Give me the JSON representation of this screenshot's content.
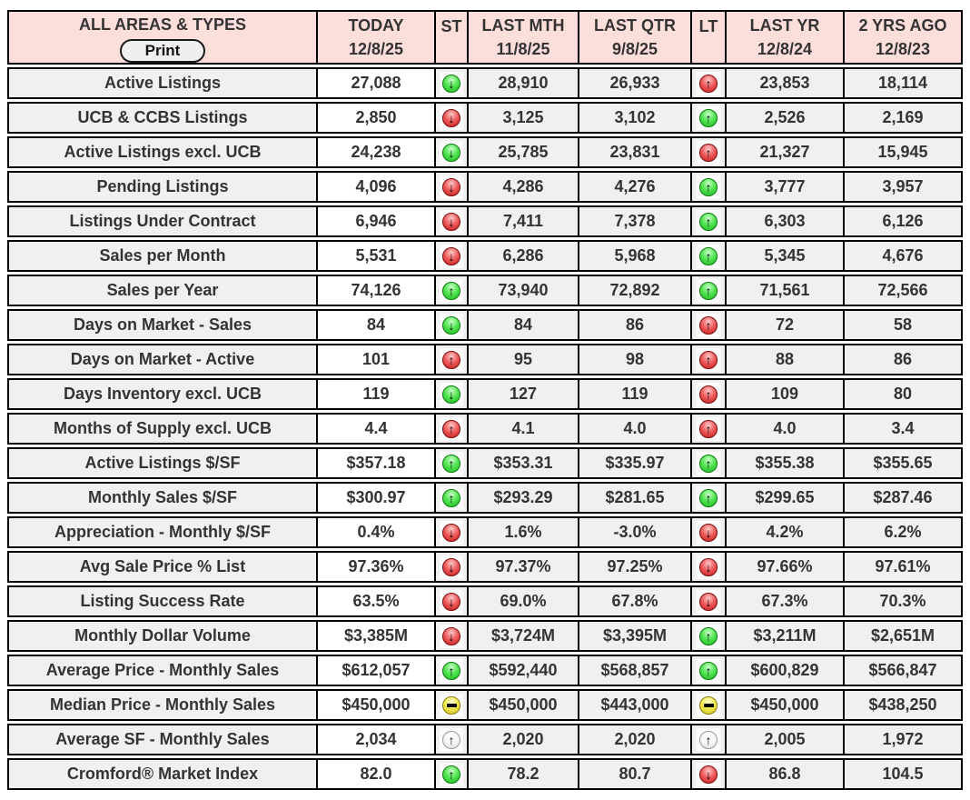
{
  "header": {
    "area_title": "ALL AREAS & TYPES",
    "print_label": "Print",
    "columns": [
      {
        "label": "TODAY",
        "date": "12/8/25"
      },
      {
        "label": "ST",
        "date": ""
      },
      {
        "label": "LAST MTH",
        "date": "11/8/25"
      },
      {
        "label": "LAST QTR",
        "date": "9/8/25"
      },
      {
        "label": "LT",
        "date": ""
      },
      {
        "label": "LAST YR",
        "date": "12/8/24"
      },
      {
        "label": "2 YRS AGO",
        "date": "12/8/23"
      }
    ]
  },
  "icons": {
    "up_glyph": "↑",
    "down_glyph": "↓"
  },
  "colors": {
    "header_bg": "#fcdedb",
    "row_bg": "#f0f0f0",
    "today_bg": "#ffffff",
    "border": "#000000",
    "text": "#333333",
    "status_green": "#2fd42f",
    "status_red": "#d93030",
    "status_yellow": "#ecdf3d",
    "status_neutral": "#f2f2f2"
  },
  "rows": [
    {
      "label": "Active Listings",
      "today": "27,088",
      "st": "green-down",
      "last_mth": "28,910",
      "last_qtr": "26,933",
      "lt": "red-up",
      "last_yr": "23,853",
      "two_yrs_ago": "18,114"
    },
    {
      "label": "UCB & CCBS Listings",
      "today": "2,850",
      "st": "red-down",
      "last_mth": "3,125",
      "last_qtr": "3,102",
      "lt": "green-up",
      "last_yr": "2,526",
      "two_yrs_ago": "2,169"
    },
    {
      "label": "Active Listings excl. UCB",
      "today": "24,238",
      "st": "green-down",
      "last_mth": "25,785",
      "last_qtr": "23,831",
      "lt": "red-up",
      "last_yr": "21,327",
      "two_yrs_ago": "15,945"
    },
    {
      "label": "Pending Listings",
      "today": "4,096",
      "st": "red-down",
      "last_mth": "4,286",
      "last_qtr": "4,276",
      "lt": "green-up",
      "last_yr": "3,777",
      "two_yrs_ago": "3,957"
    },
    {
      "label": "Listings Under Contract",
      "today": "6,946",
      "st": "red-down",
      "last_mth": "7,411",
      "last_qtr": "7,378",
      "lt": "green-up",
      "last_yr": "6,303",
      "two_yrs_ago": "6,126"
    },
    {
      "label": "Sales per Month",
      "today": "5,531",
      "st": "red-down",
      "last_mth": "6,286",
      "last_qtr": "5,968",
      "lt": "green-up",
      "last_yr": "5,345",
      "two_yrs_ago": "4,676"
    },
    {
      "label": "Sales per Year",
      "today": "74,126",
      "st": "green-up",
      "last_mth": "73,940",
      "last_qtr": "72,892",
      "lt": "green-up",
      "last_yr": "71,561",
      "two_yrs_ago": "72,566"
    },
    {
      "label": "Days on Market - Sales",
      "today": "84",
      "st": "green-down",
      "last_mth": "84",
      "last_qtr": "86",
      "lt": "red-up",
      "last_yr": "72",
      "two_yrs_ago": "58"
    },
    {
      "label": "Days on Market - Active",
      "today": "101",
      "st": "red-up",
      "last_mth": "95",
      "last_qtr": "98",
      "lt": "red-up",
      "last_yr": "88",
      "two_yrs_ago": "86"
    },
    {
      "label": "Days Inventory excl. UCB",
      "today": "119",
      "st": "green-down",
      "last_mth": "127",
      "last_qtr": "119",
      "lt": "red-up",
      "last_yr": "109",
      "two_yrs_ago": "80"
    },
    {
      "label": "Months of Supply excl. UCB",
      "today": "4.4",
      "st": "red-up",
      "last_mth": "4.1",
      "last_qtr": "4.0",
      "lt": "red-up",
      "last_yr": "4.0",
      "two_yrs_ago": "3.4"
    },
    {
      "label": "Active Listings $/SF",
      "today": "$357.18",
      "st": "green-up",
      "last_mth": "$353.31",
      "last_qtr": "$335.97",
      "lt": "green-up",
      "last_yr": "$355.38",
      "two_yrs_ago": "$355.65"
    },
    {
      "label": "Monthly Sales $/SF",
      "today": "$300.97",
      "st": "green-up",
      "last_mth": "$293.29",
      "last_qtr": "$281.65",
      "lt": "green-up",
      "last_yr": "$299.65",
      "two_yrs_ago": "$287.46"
    },
    {
      "label": "Appreciation - Monthly $/SF",
      "today": "0.4%",
      "st": "red-down",
      "last_mth": "1.6%",
      "last_qtr": "-3.0%",
      "lt": "red-down",
      "last_yr": "4.2%",
      "two_yrs_ago": "6.2%"
    },
    {
      "label": "Avg Sale Price % List",
      "today": "97.36%",
      "st": "red-down",
      "last_mth": "97.37%",
      "last_qtr": "97.25%",
      "lt": "red-down",
      "last_yr": "97.66%",
      "two_yrs_ago": "97.61%"
    },
    {
      "label": "Listing Success Rate",
      "today": "63.5%",
      "st": "red-down",
      "last_mth": "69.0%",
      "last_qtr": "67.8%",
      "lt": "red-down",
      "last_yr": "67.3%",
      "two_yrs_ago": "70.3%"
    },
    {
      "label": "Monthly Dollar Volume",
      "today": "$3,385M",
      "st": "red-down",
      "last_mth": "$3,724M",
      "last_qtr": "$3,395M",
      "lt": "green-up",
      "last_yr": "$3,211M",
      "two_yrs_ago": "$2,651M"
    },
    {
      "label": "Average Price - Monthly Sales",
      "today": "$612,057",
      "st": "green-up",
      "last_mth": "$592,440",
      "last_qtr": "$568,857",
      "lt": "green-up",
      "last_yr": "$600,829",
      "two_yrs_ago": "$566,847"
    },
    {
      "label": "Median Price - Monthly Sales",
      "today": "$450,000",
      "st": "yellow-flat",
      "last_mth": "$450,000",
      "last_qtr": "$443,000",
      "lt": "yellow-flat",
      "last_yr": "$450,000",
      "two_yrs_ago": "$438,250"
    },
    {
      "label": "Average SF - Monthly Sales",
      "today": "2,034",
      "st": "neutral-up",
      "last_mth": "2,020",
      "last_qtr": "2,020",
      "lt": "neutral-up",
      "last_yr": "2,005",
      "two_yrs_ago": "1,972"
    },
    {
      "label": "Cromford® Market Index",
      "today": "82.0",
      "st": "green-up",
      "last_mth": "78.2",
      "last_qtr": "80.7",
      "lt": "red-down",
      "last_yr": "86.8",
      "two_yrs_ago": "104.5"
    }
  ]
}
